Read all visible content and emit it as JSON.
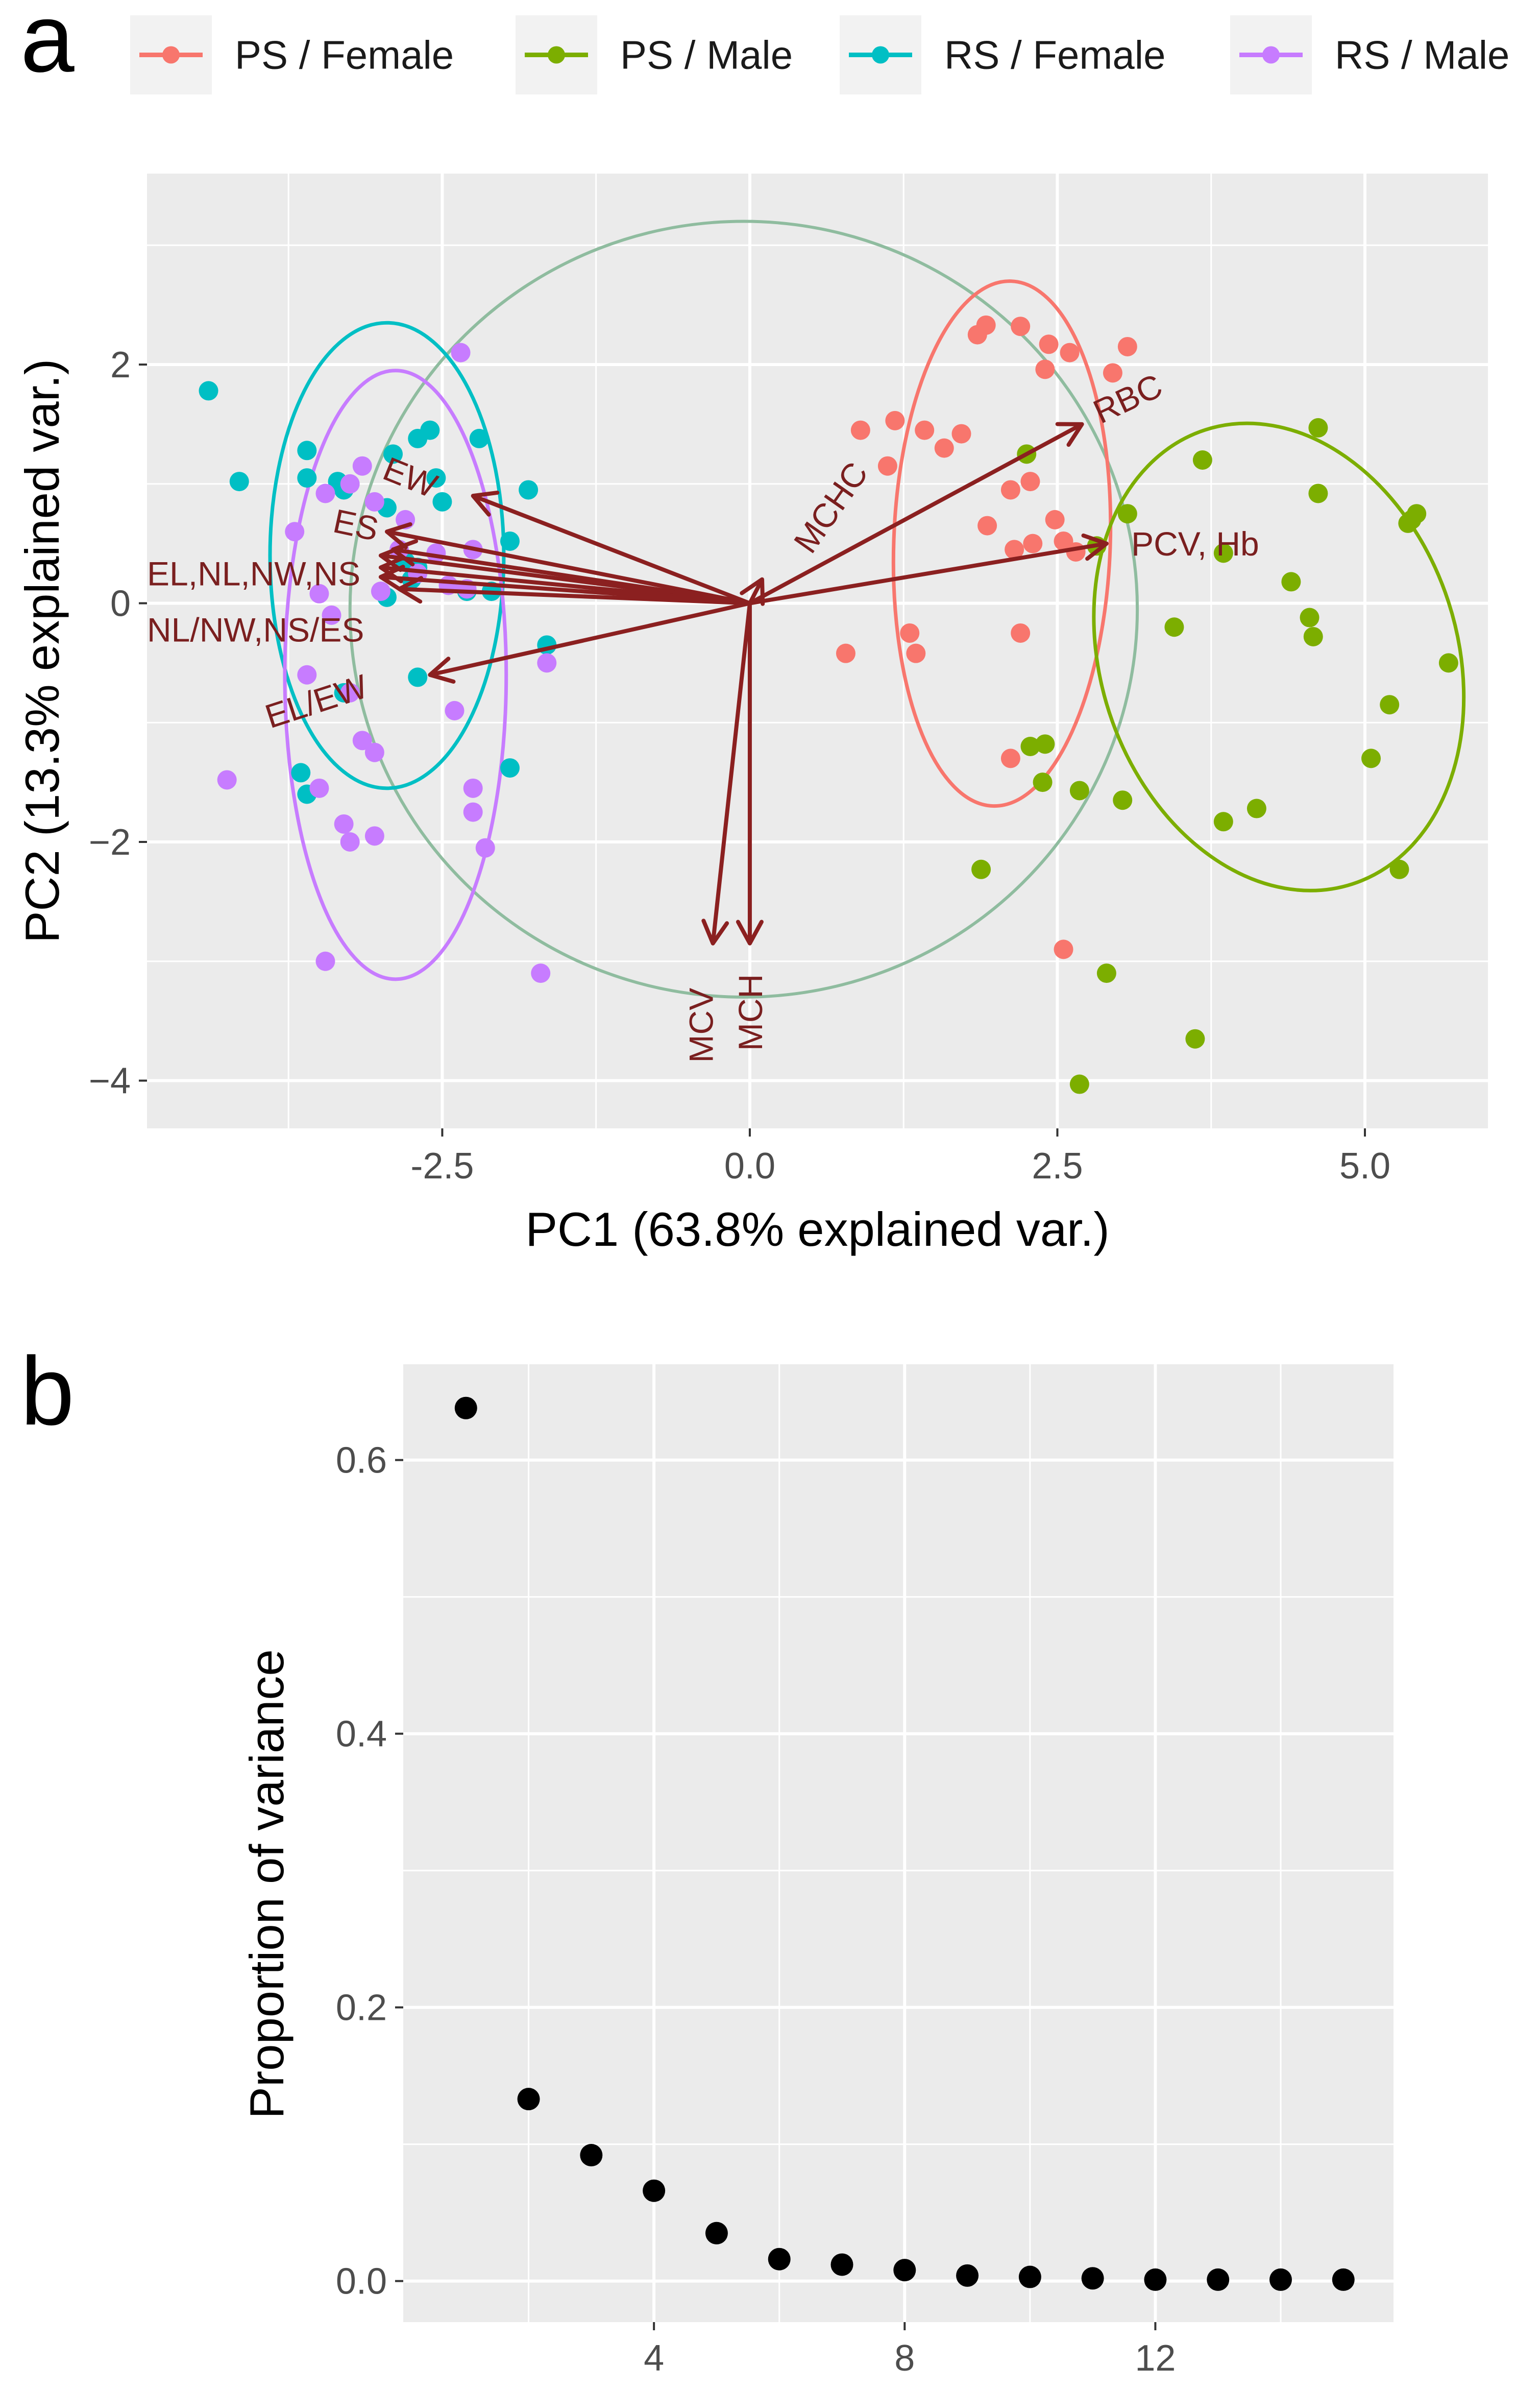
{
  "panel_labels": {
    "a": "a",
    "b": "b"
  },
  "legend": [
    {
      "label": "PS / Female",
      "color": "#F8766D"
    },
    {
      "label": "PS / Male",
      "color": "#7CAE00"
    },
    {
      "label": "RS / Female",
      "color": "#00BFC4"
    },
    {
      "label": "RS / Male",
      "color": "#C77CFF"
    }
  ],
  "colors": {
    "panel_background": "#EBEBEB",
    "grid": "#FFFFFF",
    "arrow": "#8B2020",
    "overall_ellipse": "#8FBC9F",
    "scree_points": "#000000"
  },
  "chart_data": [
    {
      "type": "scatter",
      "subtype": "pca-biplot",
      "xlabel": "PC1 (63.8% explained var.)",
      "ylabel": "PC2 (13.3% explained var.)",
      "xlim": [
        -4.9,
        6.0
      ],
      "ylim": [
        -4.4,
        3.6
      ],
      "x_ticks": [
        {
          "value": -2.5,
          "label": "-2.5"
        },
        {
          "value": 0,
          "label": "0.0"
        },
        {
          "value": 2.5,
          "label": "2.5"
        },
        {
          "value": 5,
          "label": "5.0"
        }
      ],
      "y_ticks": [
        {
          "value": 2,
          "label": "2"
        },
        {
          "value": 0,
          "label": "0"
        },
        {
          "value": -2,
          "label": "−2"
        },
        {
          "value": -4,
          "label": "−4"
        }
      ],
      "grid": true,
      "legend_position": "top",
      "series": [
        {
          "name": "PS / Female",
          "color": "#F8766D",
          "ellipse": {
            "cx": 2.05,
            "cy": 0.5,
            "rx": 0.88,
            "ry": 2.2,
            "angle": 2
          },
          "points": [
            [
              1.85,
              2.25
            ],
            [
              1.92,
              2.33
            ],
            [
              2.2,
              2.32
            ],
            [
              2.43,
              2.17
            ],
            [
              2.4,
              1.96
            ],
            [
              2.6,
              2.1
            ],
            [
              3.07,
              2.15
            ],
            [
              2.95,
              1.93
            ],
            [
              0.9,
              1.45
            ],
            [
              1.18,
              1.53
            ],
            [
              1.42,
              1.45
            ],
            [
              1.72,
              1.42
            ],
            [
              1.12,
              1.15
            ],
            [
              1.58,
              1.3
            ],
            [
              2.28,
              1.02
            ],
            [
              2.12,
              0.95
            ],
            [
              2.48,
              0.7
            ],
            [
              1.93,
              0.65
            ],
            [
              2.15,
              0.45
            ],
            [
              2.3,
              0.5
            ],
            [
              2.55,
              0.52
            ],
            [
              1.3,
              -0.25
            ],
            [
              1.35,
              -0.42
            ],
            [
              0.78,
              -0.42
            ],
            [
              2.2,
              -0.25
            ],
            [
              2.65,
              0.43
            ],
            [
              2.55,
              -2.9
            ],
            [
              2.12,
              -1.3
            ]
          ]
        },
        {
          "name": "PS / Male",
          "color": "#7CAE00",
          "ellipse": {
            "cx": 4.3,
            "cy": -0.45,
            "rx": 1.45,
            "ry": 2.0,
            "angle": -18
          },
          "points": [
            [
              2.25,
              1.25
            ],
            [
              3.07,
              0.75
            ],
            [
              2.82,
              0.48
            ],
            [
              3.68,
              1.2
            ],
            [
              3.85,
              0.42
            ],
            [
              4.62,
              1.47
            ],
            [
              4.62,
              0.92
            ],
            [
              5.42,
              0.75
            ],
            [
              5.35,
              0.67
            ],
            [
              5.38,
              0.7
            ],
            [
              4.4,
              0.18
            ],
            [
              4.55,
              -0.12
            ],
            [
              4.58,
              -0.28
            ],
            [
              3.45,
              -0.2
            ],
            [
              5.68,
              -0.5
            ],
            [
              5.2,
              -0.85
            ],
            [
              5.05,
              -1.3
            ],
            [
              2.28,
              -1.2
            ],
            [
              2.4,
              -1.18
            ],
            [
              2.38,
              -1.5
            ],
            [
              2.68,
              -1.57
            ],
            [
              3.03,
              -1.65
            ],
            [
              3.85,
              -1.83
            ],
            [
              4.12,
              -1.72
            ],
            [
              1.88,
              -2.23
            ],
            [
              5.28,
              -2.23
            ],
            [
              2.9,
              -3.1
            ],
            [
              3.62,
              -3.65
            ],
            [
              2.68,
              -4.03
            ]
          ]
        },
        {
          "name": "RS / Female",
          "color": "#00BFC4",
          "ellipse": {
            "cx": -2.95,
            "cy": 0.4,
            "rx": 0.95,
            "ry": 1.95,
            "angle": 0
          },
          "points": [
            [
              -4.4,
              1.78
            ],
            [
              -4.15,
              1.02
            ],
            [
              -3.6,
              1.28
            ],
            [
              -3.6,
              1.05
            ],
            [
              -3.35,
              1.02
            ],
            [
              -3.3,
              0.95
            ],
            [
              -2.9,
              1.25
            ],
            [
              -2.7,
              1.38
            ],
            [
              -2.6,
              1.45
            ],
            [
              -2.2,
              1.38
            ],
            [
              -1.8,
              0.95
            ],
            [
              -2.55,
              1.05
            ],
            [
              -2.5,
              0.85
            ],
            [
              -2.95,
              0.8
            ],
            [
              -1.95,
              0.52
            ],
            [
              -2.8,
              0.35
            ],
            [
              -2.7,
              0.3
            ],
            [
              -2.3,
              0.1
            ],
            [
              -2.75,
              0.2
            ],
            [
              -2.1,
              0.1
            ],
            [
              -2.95,
              0.05
            ],
            [
              -1.65,
              -0.35
            ],
            [
              -2.7,
              -0.62
            ],
            [
              -1.95,
              -1.38
            ],
            [
              -3.65,
              -1.42
            ],
            [
              -3.6,
              -1.6
            ],
            [
              -3.3,
              -0.75
            ]
          ]
        },
        {
          "name": "RS / Male",
          "color": "#C77CFF",
          "ellipse": {
            "cx": -2.88,
            "cy": -0.6,
            "rx": 0.9,
            "ry": 2.55,
            "angle": 0
          },
          "points": [
            [
              -2.35,
              2.1
            ],
            [
              -3.15,
              1.15
            ],
            [
              -3.25,
              1.0
            ],
            [
              -3.7,
              0.6
            ],
            [
              -3.45,
              0.92
            ],
            [
              -3.05,
              0.85
            ],
            [
              -2.8,
              0.7
            ],
            [
              -2.85,
              0.45
            ],
            [
              -2.55,
              0.42
            ],
            [
              -2.25,
              0.45
            ],
            [
              -3.5,
              0.08
            ],
            [
              -3.4,
              -0.1
            ],
            [
              -3.0,
              0.1
            ],
            [
              -2.7,
              0.25
            ],
            [
              -2.45,
              0.15
            ],
            [
              -2.3,
              0.12
            ],
            [
              -1.65,
              -0.5
            ],
            [
              -3.6,
              -0.6
            ],
            [
              -3.25,
              -0.75
            ],
            [
              -3.15,
              -1.15
            ],
            [
              -3.05,
              -1.25
            ],
            [
              -2.4,
              -0.9
            ],
            [
              -4.25,
              -1.48
            ],
            [
              -3.5,
              -1.55
            ],
            [
              -2.25,
              -1.55
            ],
            [
              -2.25,
              -1.75
            ],
            [
              -3.3,
              -1.85
            ],
            [
              -3.25,
              -2.0
            ],
            [
              -3.05,
              -1.95
            ],
            [
              -2.15,
              -2.05
            ],
            [
              -3.45,
              -3.0
            ],
            [
              -1.7,
              -3.1
            ]
          ]
        }
      ],
      "overall_ellipse": {
        "cx": -0.05,
        "cy": -0.05,
        "rx": 3.2,
        "ry": 3.25,
        "angle": 0
      },
      "loadings": [
        {
          "label": "EW",
          "tip": [
            -2.25,
            0.9
          ],
          "text_at": [
            -3.0,
            1.05
          ],
          "rotate": 22
        },
        {
          "label": "ES",
          "tip": [
            -2.95,
            0.6
          ],
          "text_at": [
            -3.4,
            0.6
          ],
          "rotate": 12
        },
        {
          "label": "EL,NL,NW,NS",
          "tip": [
            -3.0,
            0.3
          ],
          "text_at": [
            -4.9,
            0.15
          ],
          "rotate": 0
        },
        {
          "label": "NL/NW,NS/ES",
          "tip": [
            -3.0,
            0.22
          ],
          "text_at": [
            -4.9,
            -0.32
          ],
          "rotate": 0
        },
        {
          "label": "EL/EW",
          "tip": [
            -2.6,
            -0.6
          ],
          "text_at": [
            -3.9,
            -1.05
          ],
          "rotate": -18
        },
        {
          "label": "MCHC",
          "tip": [
            0.1,
            0.2
          ],
          "text_at": [
            0.5,
            0.4
          ],
          "rotate": -55
        },
        {
          "label": "RBC",
          "tip": [
            2.7,
            1.5
          ],
          "text_at": [
            2.85,
            1.5
          ],
          "rotate": -25
        },
        {
          "label": "PCV, Hb",
          "tip": [
            2.9,
            0.5
          ],
          "text_at": [
            3.1,
            0.4
          ],
          "rotate": 0
        },
        {
          "label": "MCV",
          "tip": [
            -0.3,
            -2.85
          ],
          "text_at": [
            -0.3,
            -3.85
          ],
          "rotate": -90
        },
        {
          "label": "MCH",
          "tip": [
            0.0,
            -2.85
          ],
          "text_at": [
            0.1,
            -3.75
          ],
          "rotate": -90
        }
      ],
      "loading_arrows_extra": [
        {
          "tip": [
            -3.0,
            0.4
          ]
        },
        {
          "tip": [
            -2.9,
            0.45
          ]
        },
        {
          "tip": [
            -2.85,
            0.12
          ]
        }
      ]
    },
    {
      "type": "scatter",
      "subtype": "scree",
      "xlabel": "",
      "ylabel": "Proportion of variance",
      "xlim": [
        0.0,
        15.8
      ],
      "ylim": [
        -0.03,
        0.67
      ],
      "x_ticks": [
        {
          "value": 4,
          "label": "4"
        },
        {
          "value": 8,
          "label": "8"
        },
        {
          "value": 12,
          "label": "12"
        }
      ],
      "y_ticks": [
        {
          "value": 0.0,
          "label": "0.0"
        },
        {
          "value": 0.2,
          "label": "0.2"
        },
        {
          "value": 0.4,
          "label": "0.4"
        },
        {
          "value": 0.6,
          "label": "0.6"
        }
      ],
      "grid": true,
      "x": [
        1,
        2,
        3,
        4,
        5,
        6,
        7,
        8,
        9,
        10,
        11,
        12,
        13,
        14,
        15
      ],
      "values": [
        0.638,
        0.133,
        0.092,
        0.066,
        0.035,
        0.016,
        0.012,
        0.008,
        0.004,
        0.003,
        0.002,
        0.001,
        0.001,
        0.001,
        0.001
      ]
    }
  ]
}
